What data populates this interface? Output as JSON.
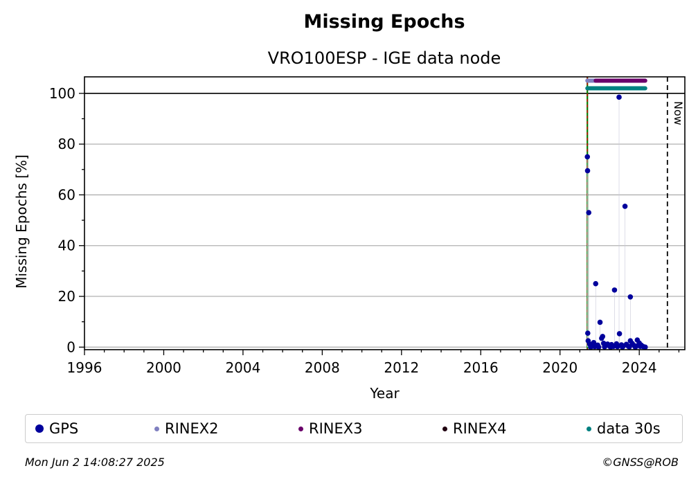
{
  "chart_data": {
    "type": "scatter",
    "title": "Missing Epochs",
    "subtitle": "VRO100ESP - IGE data node",
    "xlabel": "Year",
    "ylabel": "Missing Epochs [%]",
    "xlim": [
      1996,
      2026.3
    ],
    "ylim": [
      -1,
      106.5
    ],
    "xticks": [
      1996,
      2000,
      2004,
      2008,
      2012,
      2016,
      2020,
      2024
    ],
    "yticks": [
      0,
      20,
      40,
      60,
      80,
      100
    ],
    "grid": "horizontal",
    "now_label": "Now",
    "now_x": 2025.42,
    "start_x": 2021.38,
    "series": [
      {
        "name": "GPS",
        "color": "#00009c",
        "points": [
          [
            2021.38,
            75
          ],
          [
            2021.39,
            69.5
          ],
          [
            2021.45,
            53
          ],
          [
            2021.4,
            5.5
          ],
          [
            2021.42,
            2.5
          ],
          [
            2021.8,
            25
          ],
          [
            2022.02,
            9.8
          ],
          [
            2022.75,
            22.5
          ],
          [
            2022.98,
            98.5
          ],
          [
            2023.0,
            5.3
          ],
          [
            2023.28,
            55.5
          ],
          [
            2023.55,
            19.8
          ],
          [
            2023.55,
            2.5
          ],
          [
            2023.9,
            2.8
          ],
          [
            2021.5,
            1.2
          ],
          [
            2021.6,
            0.5
          ],
          [
            2021.7,
            1.8
          ],
          [
            2021.9,
            0.8
          ],
          [
            2022.1,
            3.5
          ],
          [
            2022.15,
            4.2
          ],
          [
            2022.2,
            1.5
          ],
          [
            2022.3,
            0.6
          ],
          [
            2022.4,
            1.2
          ],
          [
            2022.5,
            0.4
          ],
          [
            2022.6,
            1.0
          ],
          [
            2022.7,
            0.3
          ],
          [
            2022.85,
            1.3
          ],
          [
            2023.1,
            0.9
          ],
          [
            2023.2,
            0.5
          ],
          [
            2023.35,
            1.1
          ],
          [
            2023.45,
            0.3
          ],
          [
            2023.65,
            1.4
          ],
          [
            2023.75,
            0.6
          ],
          [
            2023.85,
            0.4
          ],
          [
            2024.0,
            1.6
          ],
          [
            2024.1,
            0.8
          ],
          [
            2024.2,
            0.2
          ],
          [
            2024.3,
            0.0
          ],
          [
            2021.55,
            0.0
          ],
          [
            2021.75,
            0.2
          ],
          [
            2021.95,
            0.0
          ],
          [
            2022.25,
            0.1
          ],
          [
            2022.55,
            0.0
          ],
          [
            2022.9,
            0.2
          ],
          [
            2023.15,
            0.0
          ],
          [
            2023.5,
            0.1
          ],
          [
            2023.8,
            0.0
          ],
          [
            2024.05,
            0.3
          ]
        ]
      },
      {
        "name": "RINEX2",
        "color": "#8080c0",
        "y": 105,
        "range": [
          2021.38,
          2021.8
        ]
      },
      {
        "name": "RINEX3",
        "color": "#6a006a",
        "y": 105,
        "range": [
          2021.8,
          2024.3
        ]
      },
      {
        "name": "RINEX4",
        "color": "#200010",
        "y": 105,
        "range": []
      },
      {
        "name": "data 30s",
        "color": "#008080",
        "y": 102,
        "range": [
          2021.38,
          2024.3
        ]
      }
    ]
  },
  "legend": [
    {
      "label": "GPS",
      "color": "#00009c"
    },
    {
      "label": "RINEX2",
      "color": "#8080c0"
    },
    {
      "label": "RINEX3",
      "color": "#6a006a"
    },
    {
      "label": "RINEX4",
      "color": "#200010"
    },
    {
      "label": "data 30s",
      "color": "#008080"
    }
  ],
  "footer": {
    "timestamp": "Mon Jun  2 14:08:27 2025",
    "credit": "©GNSS@ROB"
  }
}
